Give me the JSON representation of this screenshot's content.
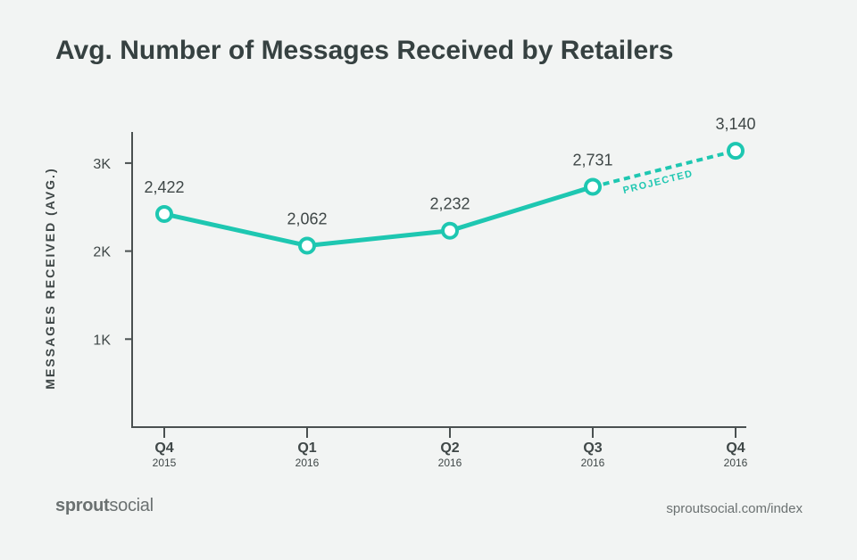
{
  "brand": {
    "logo_bold": "sprout",
    "logo_light": "social"
  },
  "footer": {
    "source": "sproutsocial.com/index"
  },
  "colors": {
    "accent": "#1ec7b1",
    "axis": "#4a5050",
    "text": "#3f4747",
    "background": "#f2f4f3"
  },
  "chart_data": {
    "type": "line",
    "title": "Avg. Number of Messages Received by Retailers",
    "ylabel": "MESSAGES RECEIVED (AVG.)",
    "xlabel": "",
    "ylim": [
      0,
      3400
    ],
    "yticks": [
      {
        "value": 1000,
        "label": "1K"
      },
      {
        "value": 2000,
        "label": "2K"
      },
      {
        "value": 3000,
        "label": "3K"
      }
    ],
    "categories": [
      {
        "quarter": "Q4",
        "year": "2015"
      },
      {
        "quarter": "Q1",
        "year": "2016"
      },
      {
        "quarter": "Q2",
        "year": "2016"
      },
      {
        "quarter": "Q3",
        "year": "2016"
      },
      {
        "quarter": "Q4",
        "year": "2016"
      }
    ],
    "values": [
      2422,
      2062,
      2232,
      2731,
      3140
    ],
    "value_labels": [
      "2,422",
      "2,062",
      "2,232",
      "2,731",
      "3,140"
    ],
    "projected_from_index": 3,
    "annotation": "PROJECTED",
    "grid": false
  }
}
